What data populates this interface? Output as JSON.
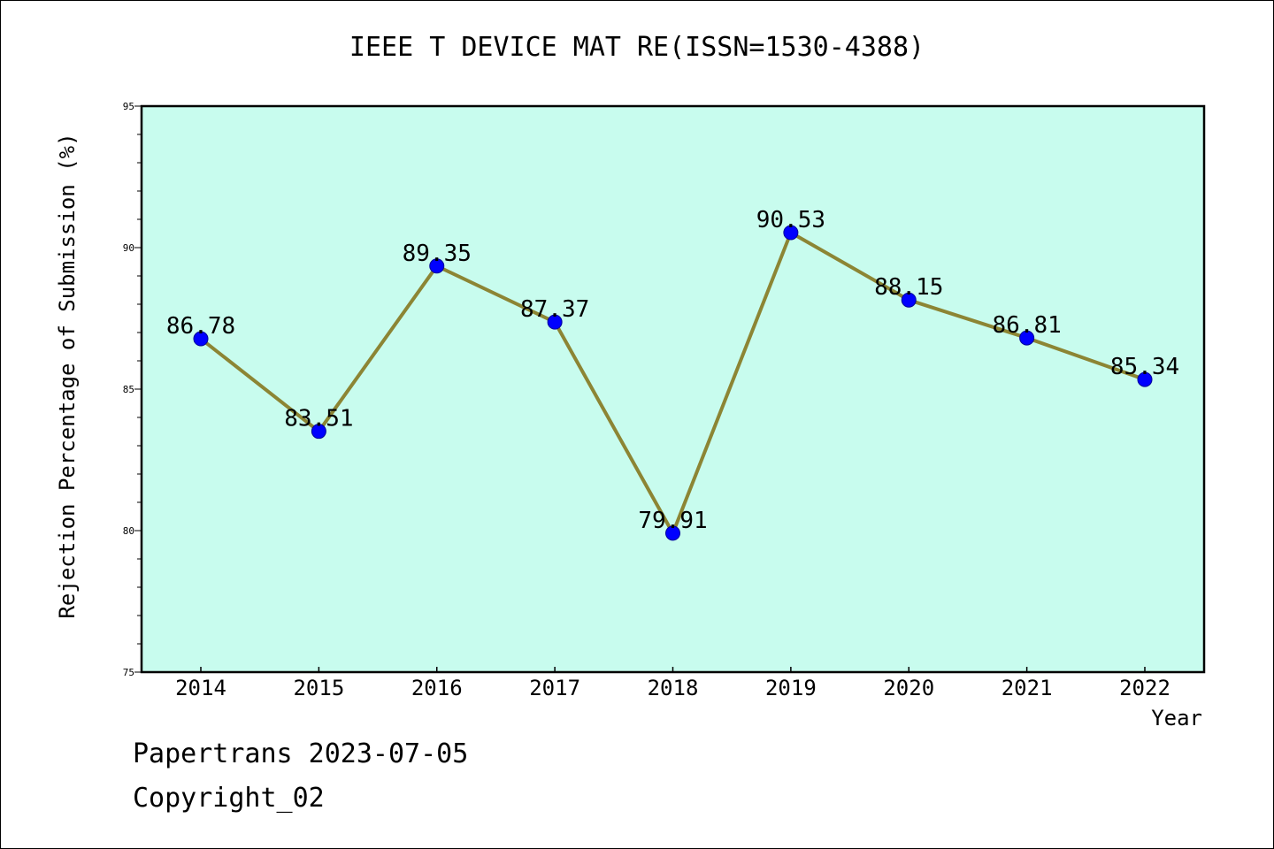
{
  "chart_data": {
    "type": "line",
    "title": "IEEE T DEVICE MAT RE(ISSN=1530-4388)",
    "xlabel": "Year",
    "ylabel": "Rejection Percentage of Submission (%)",
    "categories": [
      "2014",
      "2015",
      "2016",
      "2017",
      "2018",
      "2019",
      "2020",
      "2021",
      "2022"
    ],
    "values": [
      86.78,
      83.51,
      89.35,
      87.37,
      79.91,
      90.53,
      88.15,
      86.81,
      85.34
    ],
    "data_labels": [
      "86.78",
      "83.51",
      "89.35",
      "87.37",
      "79.91",
      "90.53",
      "88.15",
      "86.81",
      "85.34"
    ],
    "ylim": [
      75,
      95
    ],
    "yticks": [
      "75",
      "80",
      "85",
      "90",
      "95"
    ],
    "grid": false,
    "colors": {
      "plot_background": "#c8fcee",
      "line": "#8c8534",
      "marker": "#0000ff"
    }
  },
  "footer": {
    "date_line": "Papertrans 2023-07-05",
    "copyright": "Copyright_02"
  }
}
